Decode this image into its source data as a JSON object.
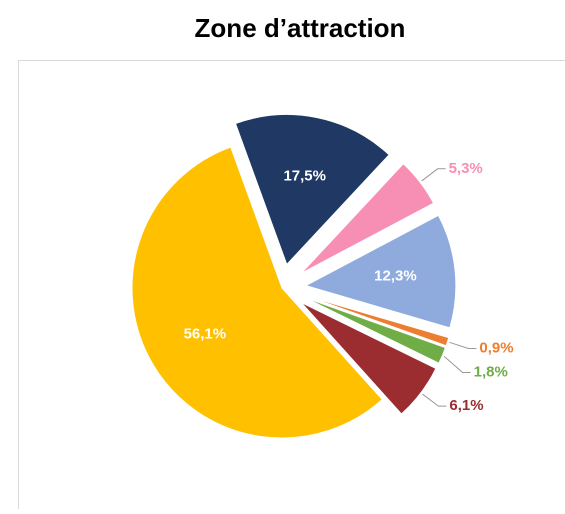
{
  "chart_data": {
    "type": "pie",
    "title": "Zone d’attraction",
    "values": [
      17.5,
      5.3,
      12.3,
      0.9,
      1.8,
      6.1,
      56.1
    ],
    "value_labels": [
      "17,5%",
      "5,3%",
      "12,3%",
      "0,9%",
      "1,8%",
      "6,1%",
      "56,1%"
    ],
    "colors": [
      "#203864",
      "#f78fb4",
      "#8faadc",
      "#ed7d31",
      "#70ad47",
      "#9b2d30",
      "#ffc000"
    ]
  }
}
